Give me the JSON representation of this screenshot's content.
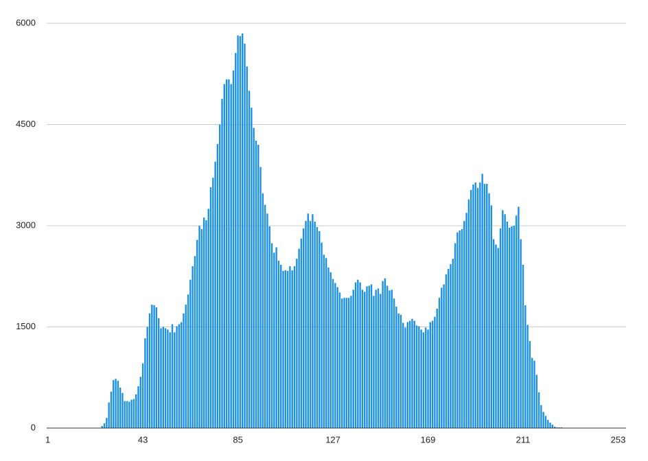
{
  "chart_data": {
    "type": "bar",
    "color": "#1a8fe6",
    "grid": true,
    "x": [
      1,
      2,
      3,
      4,
      5,
      6,
      7,
      8,
      9,
      10,
      11,
      12,
      13,
      14,
      15,
      16,
      17,
      18,
      19,
      20,
      21,
      22,
      23,
      24,
      25,
      26,
      27,
      28,
      29,
      30,
      31,
      32,
      33,
      34,
      35,
      36,
      37,
      38,
      39,
      40,
      41,
      42,
      43,
      44,
      45,
      46,
      47,
      48,
      49,
      50,
      51,
      52,
      53,
      54,
      55,
      56,
      57,
      58,
      59,
      60,
      61,
      62,
      63,
      64,
      65,
      66,
      67,
      68,
      69,
      70,
      71,
      72,
      73,
      74,
      75,
      76,
      77,
      78,
      79,
      80,
      81,
      82,
      83,
      84,
      85,
      86,
      87,
      88,
      89,
      90,
      91,
      92,
      93,
      94,
      95,
      96,
      97,
      98,
      99,
      100,
      101,
      102,
      103,
      104,
      105,
      106,
      107,
      108,
      109,
      110,
      111,
      112,
      113,
      114,
      115,
      116,
      117,
      118,
      119,
      120,
      121,
      122,
      123,
      124,
      125,
      126,
      127,
      128,
      129,
      130,
      131,
      132,
      133,
      134,
      135,
      136,
      137,
      138,
      139,
      140,
      141,
      142,
      143,
      144,
      145,
      146,
      147,
      148,
      149,
      150,
      151,
      152,
      153,
      154,
      155,
      156,
      157,
      158,
      159,
      160,
      161,
      162,
      163,
      164,
      165,
      166,
      167,
      168,
      169,
      170,
      171,
      172,
      173,
      174,
      175,
      176,
      177,
      178,
      179,
      180,
      181,
      182,
      183,
      184,
      185,
      186,
      187,
      188,
      189,
      190,
      191,
      192,
      193,
      194,
      195,
      196,
      197,
      198,
      199,
      200,
      201,
      202,
      203,
      204,
      205,
      206,
      207,
      208,
      209,
      210,
      211,
      212,
      213,
      214,
      215,
      216,
      217,
      218,
      219,
      220,
      221,
      222,
      223,
      224,
      225,
      226,
      227,
      228,
      229,
      230,
      231,
      232,
      233,
      234,
      235,
      236,
      237,
      238,
      239,
      240,
      241,
      242,
      243,
      244,
      245,
      246,
      247,
      248,
      249,
      250,
      251,
      252,
      253,
      254,
      255,
      256
    ],
    "values": [
      0,
      0,
      0,
      0,
      0,
      0,
      0,
      0,
      0,
      0,
      0,
      0,
      0,
      0,
      0,
      0,
      0,
      0,
      0,
      0,
      0,
      0,
      0,
      0,
      30,
      70,
      150,
      380,
      540,
      710,
      730,
      700,
      600,
      520,
      400,
      400,
      390,
      420,
      430,
      500,
      620,
      760,
      960,
      1330,
      1500,
      1700,
      1830,
      1820,
      1790,
      1630,
      1480,
      1500,
      1480,
      1460,
      1420,
      1540,
      1420,
      1510,
      1540,
      1570,
      1700,
      1830,
      1980,
      2200,
      2400,
      2550,
      2790,
      3000,
      2950,
      3120,
      3080,
      3250,
      3570,
      3710,
      3950,
      4210,
      4500,
      4880,
      5100,
      5170,
      5170,
      5100,
      5300,
      5560,
      5820,
      5810,
      5850,
      5700,
      5360,
      5000,
      4750,
      4450,
      4260,
      4200,
      3870,
      3480,
      3310,
      3180,
      2990,
      2740,
      2600,
      2680,
      2480,
      2420,
      2330,
      2340,
      2330,
      2400,
      2340,
      2400,
      2510,
      2660,
      2810,
      2960,
      3070,
      3180,
      3070,
      3170,
      3060,
      2980,
      2920,
      2750,
      2570,
      2520,
      2380,
      2310,
      2210,
      2150,
      2090,
      2010,
      1920,
      1930,
      1930,
      1930,
      1960,
      2050,
      2160,
      2200,
      2160,
      2050,
      2020,
      2100,
      2110,
      2130,
      1960,
      2050,
      2070,
      1990,
      2180,
      2220,
      2110,
      2040,
      2050,
      1920,
      1800,
      1700,
      1680,
      1560,
      1490,
      1570,
      1590,
      1620,
      1590,
      1520,
      1510,
      1460,
      1420,
      1490,
      1460,
      1570,
      1590,
      1650,
      1770,
      1930,
      2080,
      2130,
      2280,
      2360,
      2430,
      2510,
      2740,
      2900,
      2930,
      2950,
      3070,
      3190,
      3390,
      3530,
      3610,
      3640,
      3560,
      3640,
      3770,
      3620,
      3620,
      3480,
      3300,
      2800,
      2720,
      2670,
      2960,
      3230,
      3170,
      3060,
      2970,
      2990,
      3000,
      3150,
      3280,
      2800,
      2420,
      1820,
      1530,
      1290,
      1040,
      1000,
      790,
      530,
      340,
      240,
      180,
      120,
      80,
      50,
      20,
      10,
      10,
      10,
      0,
      0,
      0,
      0,
      0,
      0,
      0,
      0,
      0,
      0,
      0,
      0,
      0,
      0,
      0,
      0,
      0,
      0,
      0,
      0,
      0,
      0,
      0,
      0,
      0,
      0,
      0,
      0
    ],
    "xlim": [
      0.5,
      256.5
    ],
    "xticks": [
      1,
      43,
      85,
      127,
      169,
      211,
      253
    ],
    "ylim": [
      0,
      6000
    ],
    "yticks": [
      0,
      1500,
      3000,
      4500,
      6000
    ]
  }
}
